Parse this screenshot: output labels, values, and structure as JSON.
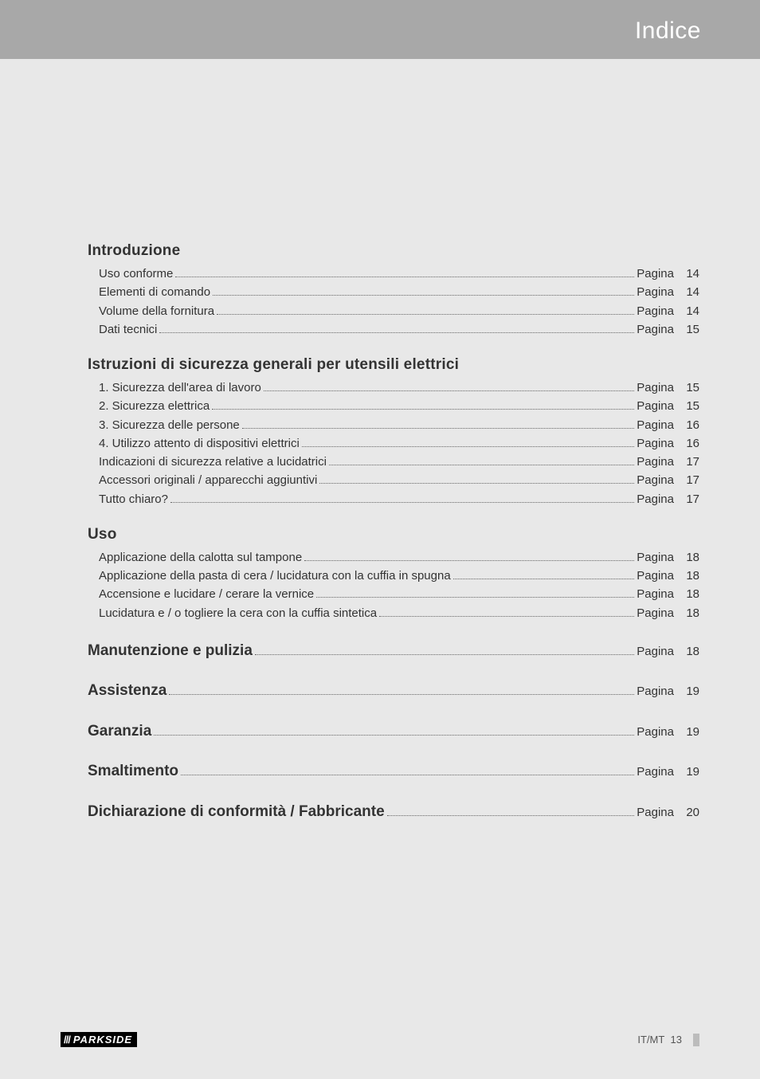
{
  "header": {
    "title": "Indice"
  },
  "page_word": "Pagina",
  "colors": {
    "page_bg": "#e8e8e8",
    "header_bg": "#a8a8a8",
    "header_text": "#ffffff",
    "body_text": "#333333",
    "dots": "#666666",
    "footer_text": "#555555",
    "brand_bg": "#000000",
    "brand_text": "#ffffff",
    "tab": "#bcbcbc"
  },
  "sections": [
    {
      "heading": "Introduzione",
      "entries": [
        {
          "label": "Uso conforme",
          "page": 14
        },
        {
          "label": "Elementi di comando",
          "page": 14
        },
        {
          "label": "Volume della fornitura",
          "page": 14
        },
        {
          "label": "Dati tecnici",
          "page": 15
        }
      ]
    },
    {
      "heading": "Istruzioni di sicurezza generali per utensili elettrici",
      "entries": [
        {
          "label": "1. Sicurezza dell'area di lavoro",
          "page": 15
        },
        {
          "label": "2. Sicurezza elettrica",
          "page": 15
        },
        {
          "label": "3. Sicurezza delle persone",
          "page": 16
        },
        {
          "label": "4. Utilizzo attento di dispositivi elettrici",
          "page": 16
        },
        {
          "label": "Indicazioni di sicurezza relative a lucidatrici",
          "page": 17
        },
        {
          "label": "Accessori originali / apparecchi aggiuntivi",
          "page": 17
        },
        {
          "label": "Tutto chiaro?",
          "page": 17
        }
      ]
    },
    {
      "heading": "Uso",
      "entries": [
        {
          "label": "Applicazione della calotta sul tampone",
          "page": 18
        },
        {
          "label": "Applicazione della pasta di cera / lucidatura con la cuffia in spugna",
          "page": 18
        },
        {
          "label": "Accensione e lucidare / cerare la vernice",
          "page": 18
        },
        {
          "label": "Lucidatura e / o togliere la cera con la cuffia sintetica",
          "page": 18
        }
      ]
    }
  ],
  "inline_sections": [
    {
      "heading": "Manutenzione e pulizia",
      "page": 18
    },
    {
      "heading": "Assistenza",
      "page": 19
    },
    {
      "heading": "Garanzia",
      "page": 19
    },
    {
      "heading": "Smaltimento",
      "page": 19
    },
    {
      "heading": "Dichiarazione di conformità / Fabbricante",
      "page": 20
    }
  ],
  "footer": {
    "brand_stripes": "///",
    "brand": "PARKSIDE",
    "lang": "IT/MT",
    "pagenum": 13
  }
}
